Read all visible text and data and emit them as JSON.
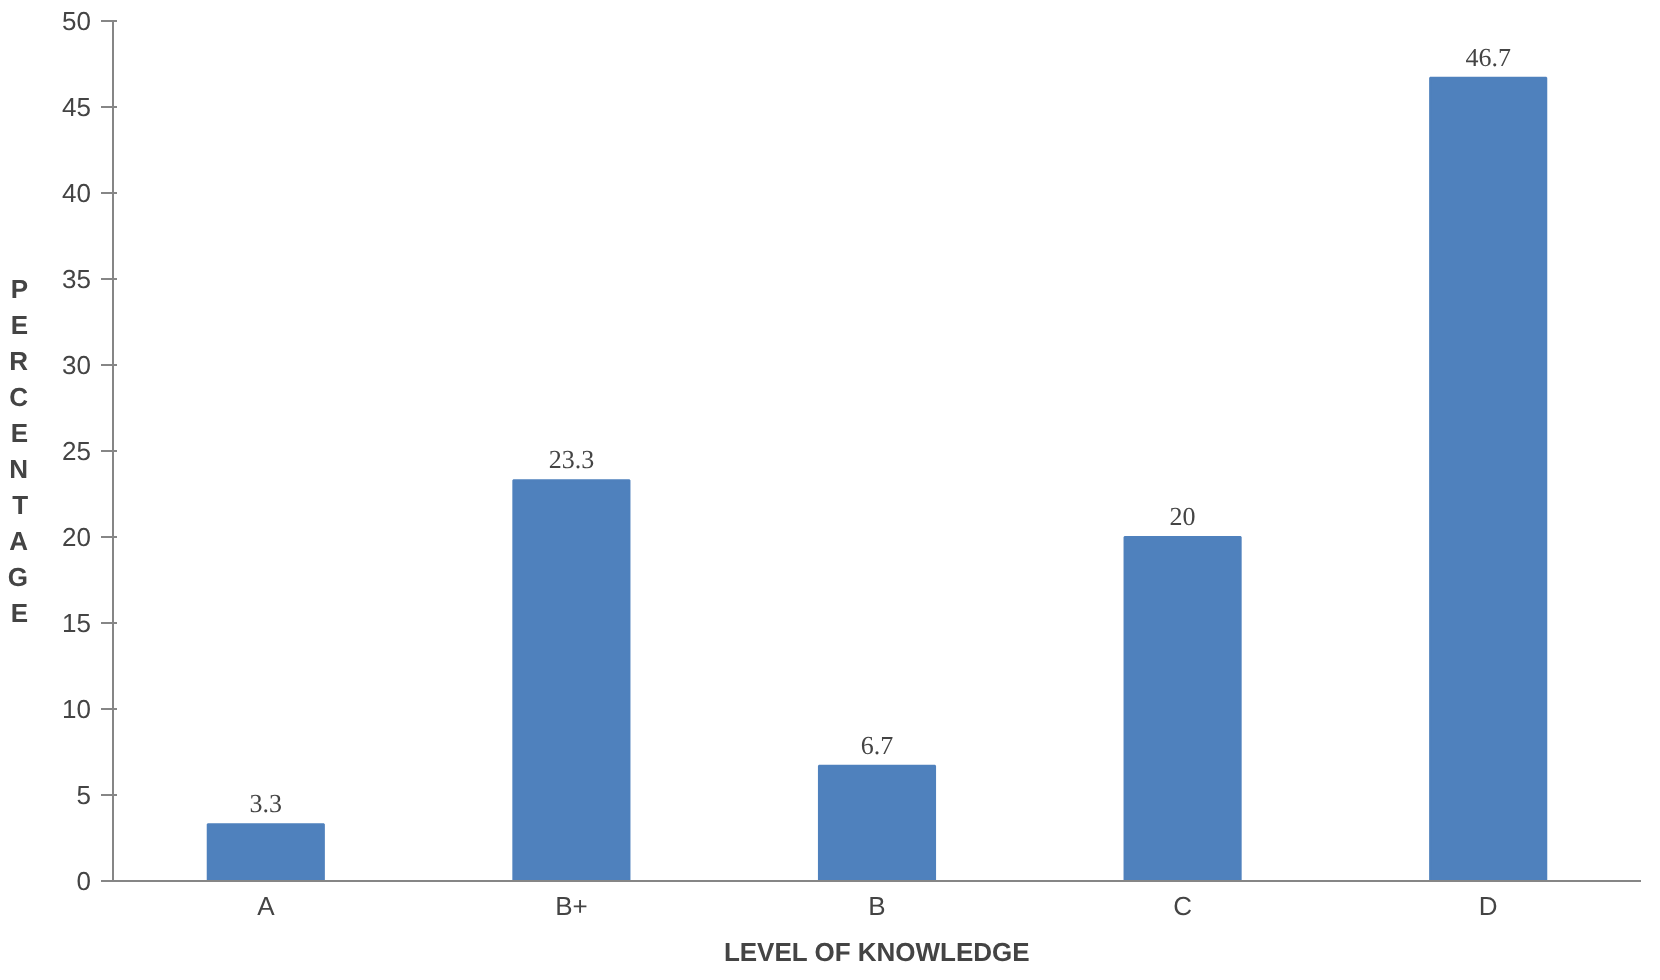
{
  "chart_data": {
    "type": "bar",
    "xlabel": "LEVEL OF KNOWLEDGE",
    "ylabel": "PERCENTAGE",
    "categories": [
      "A",
      "B+",
      "B",
      "C",
      "D"
    ],
    "values": [
      3.3,
      23.3,
      6.7,
      20,
      46.7
    ],
    "color": "#4f81bd",
    "ylim": [
      0,
      50
    ],
    "yticks": [
      0,
      5,
      10,
      15,
      20,
      25,
      30,
      35,
      40,
      45,
      50
    ],
    "grid": false,
    "data_labels": true
  }
}
